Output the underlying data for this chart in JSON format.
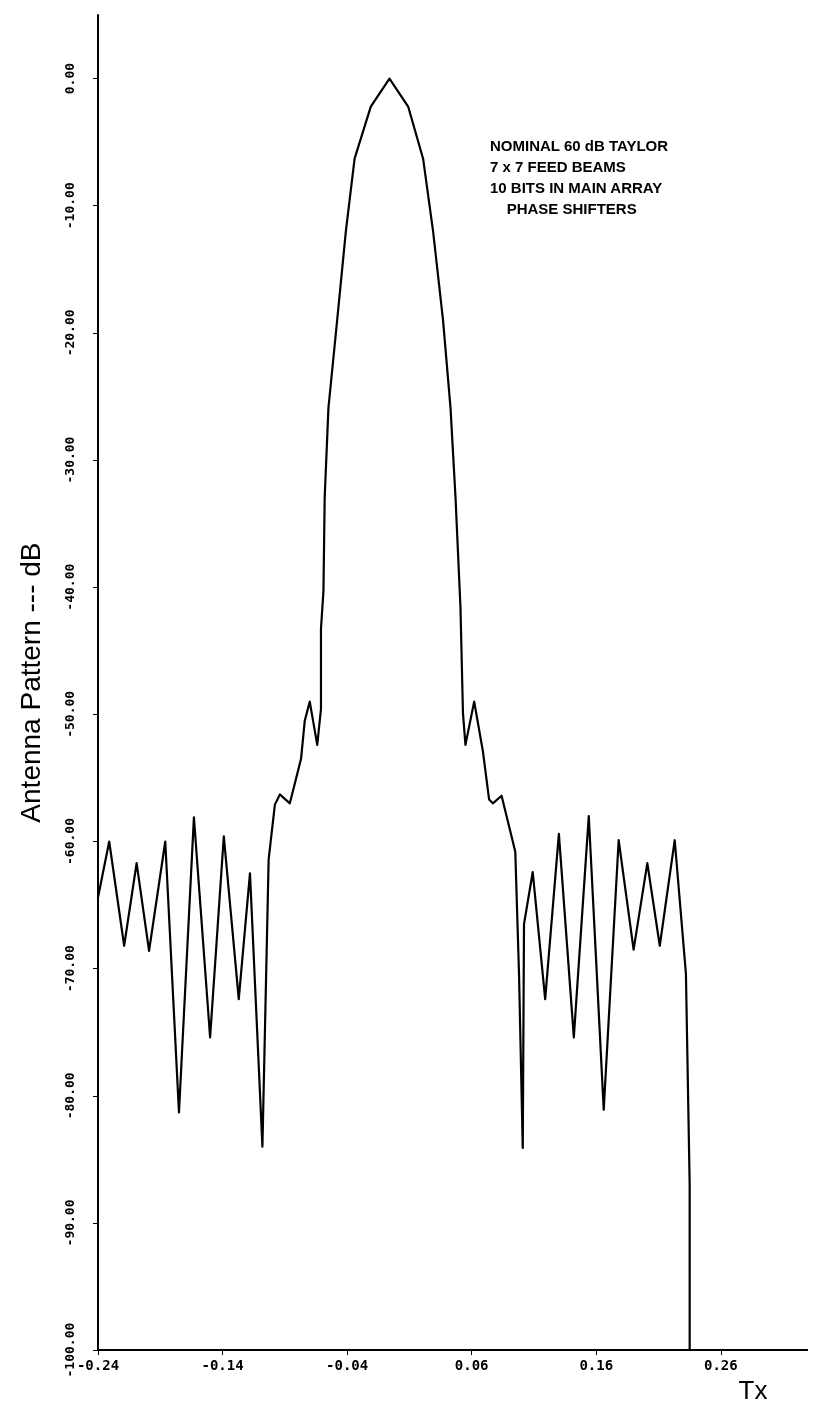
{
  "chart_data": {
    "type": "line",
    "xlabel": "Tx",
    "ylabel": "Antenna Pattern --- dB",
    "annotations": [
      "NOMINAL 60 dB TAYLOR",
      "7 x 7 FEED BEAMS",
      "10 BITS IN MAIN ARRAY",
      "    PHASE SHIFTERS"
    ],
    "series": [
      {
        "color": "#000000",
        "x": [
          -0.24,
          -0.231,
          -0.219,
          -0.209,
          -0.199,
          -0.186,
          -0.175,
          -0.163,
          -0.15,
          -0.139,
          -0.127,
          -0.118,
          -0.108,
          -0.103,
          -0.098,
          -0.094,
          -0.086,
          -0.077,
          -0.074,
          -0.07,
          -0.064,
          -0.061,
          -0.061,
          -0.059,
          -0.058,
          -0.055,
          -0.048,
          -0.041,
          -0.034,
          -0.021,
          -0.006,
          0.009,
          0.021,
          0.029,
          0.037,
          0.043,
          0.047,
          0.051,
          0.053,
          0.055,
          0.062,
          0.069,
          0.074,
          0.077,
          0.084,
          0.095,
          0.098,
          0.101,
          0.102,
          0.109,
          0.119,
          0.13,
          0.142,
          0.154,
          0.166,
          0.178,
          0.19,
          0.201,
          0.211,
          0.223,
          0.232,
          0.235,
          0.235
        ],
        "values": [
          -64.4,
          -60,
          -68.2,
          -61.7,
          -68.6,
          -60,
          -81.3,
          -58.1,
          -75.4,
          -59.6,
          -72.4,
          -62.5,
          -84,
          -61.4,
          -57.1,
          -56.3,
          -57,
          -53.5,
          -50.5,
          -49,
          -52.4,
          -49.6,
          -43.3,
          -40.3,
          -32.9,
          -25.9,
          -19,
          -12,
          -6.3,
          -2.2,
          0,
          -2.2,
          -6.3,
          -12,
          -19,
          -25.9,
          -32.9,
          -41.6,
          -49.9,
          -52.4,
          -49,
          -52.9,
          -56.7,
          -57,
          -56.4,
          -60.8,
          -70.4,
          -84.1,
          -66.5,
          -62.4,
          -72.4,
          -59.4,
          -75.4,
          -58,
          -81.1,
          -59.9,
          -68.5,
          -61.7,
          -68.2,
          -59.9,
          -70.4,
          -87,
          -100
        ]
      }
    ],
    "xlim": [
      -0.24,
      0.33
    ],
    "xticks": [
      -0.24,
      -0.14,
      -0.04,
      0.06,
      0.16,
      0.26
    ],
    "ylim": [
      -100,
      5
    ],
    "yticks": [
      {
        "value": 0,
        "label": "0.00"
      },
      {
        "value": -10,
        "label": "-10.00"
      },
      {
        "value": -20,
        "label": "-20.00"
      },
      {
        "value": -30,
        "label": "-30.00"
      },
      {
        "value": -40,
        "label": "-40.00"
      },
      {
        "value": -50,
        "label": "-50.00"
      },
      {
        "value": -60,
        "label": "-60.00"
      },
      {
        "value": -70,
        "label": "-70.00"
      },
      {
        "value": -80,
        "label": "-80.00"
      },
      {
        "value": -90,
        "label": "-90.00"
      },
      {
        "value": -100,
        "label": "-100.00"
      }
    ],
    "grid": false,
    "marker": "none",
    "line_style": "solid"
  }
}
